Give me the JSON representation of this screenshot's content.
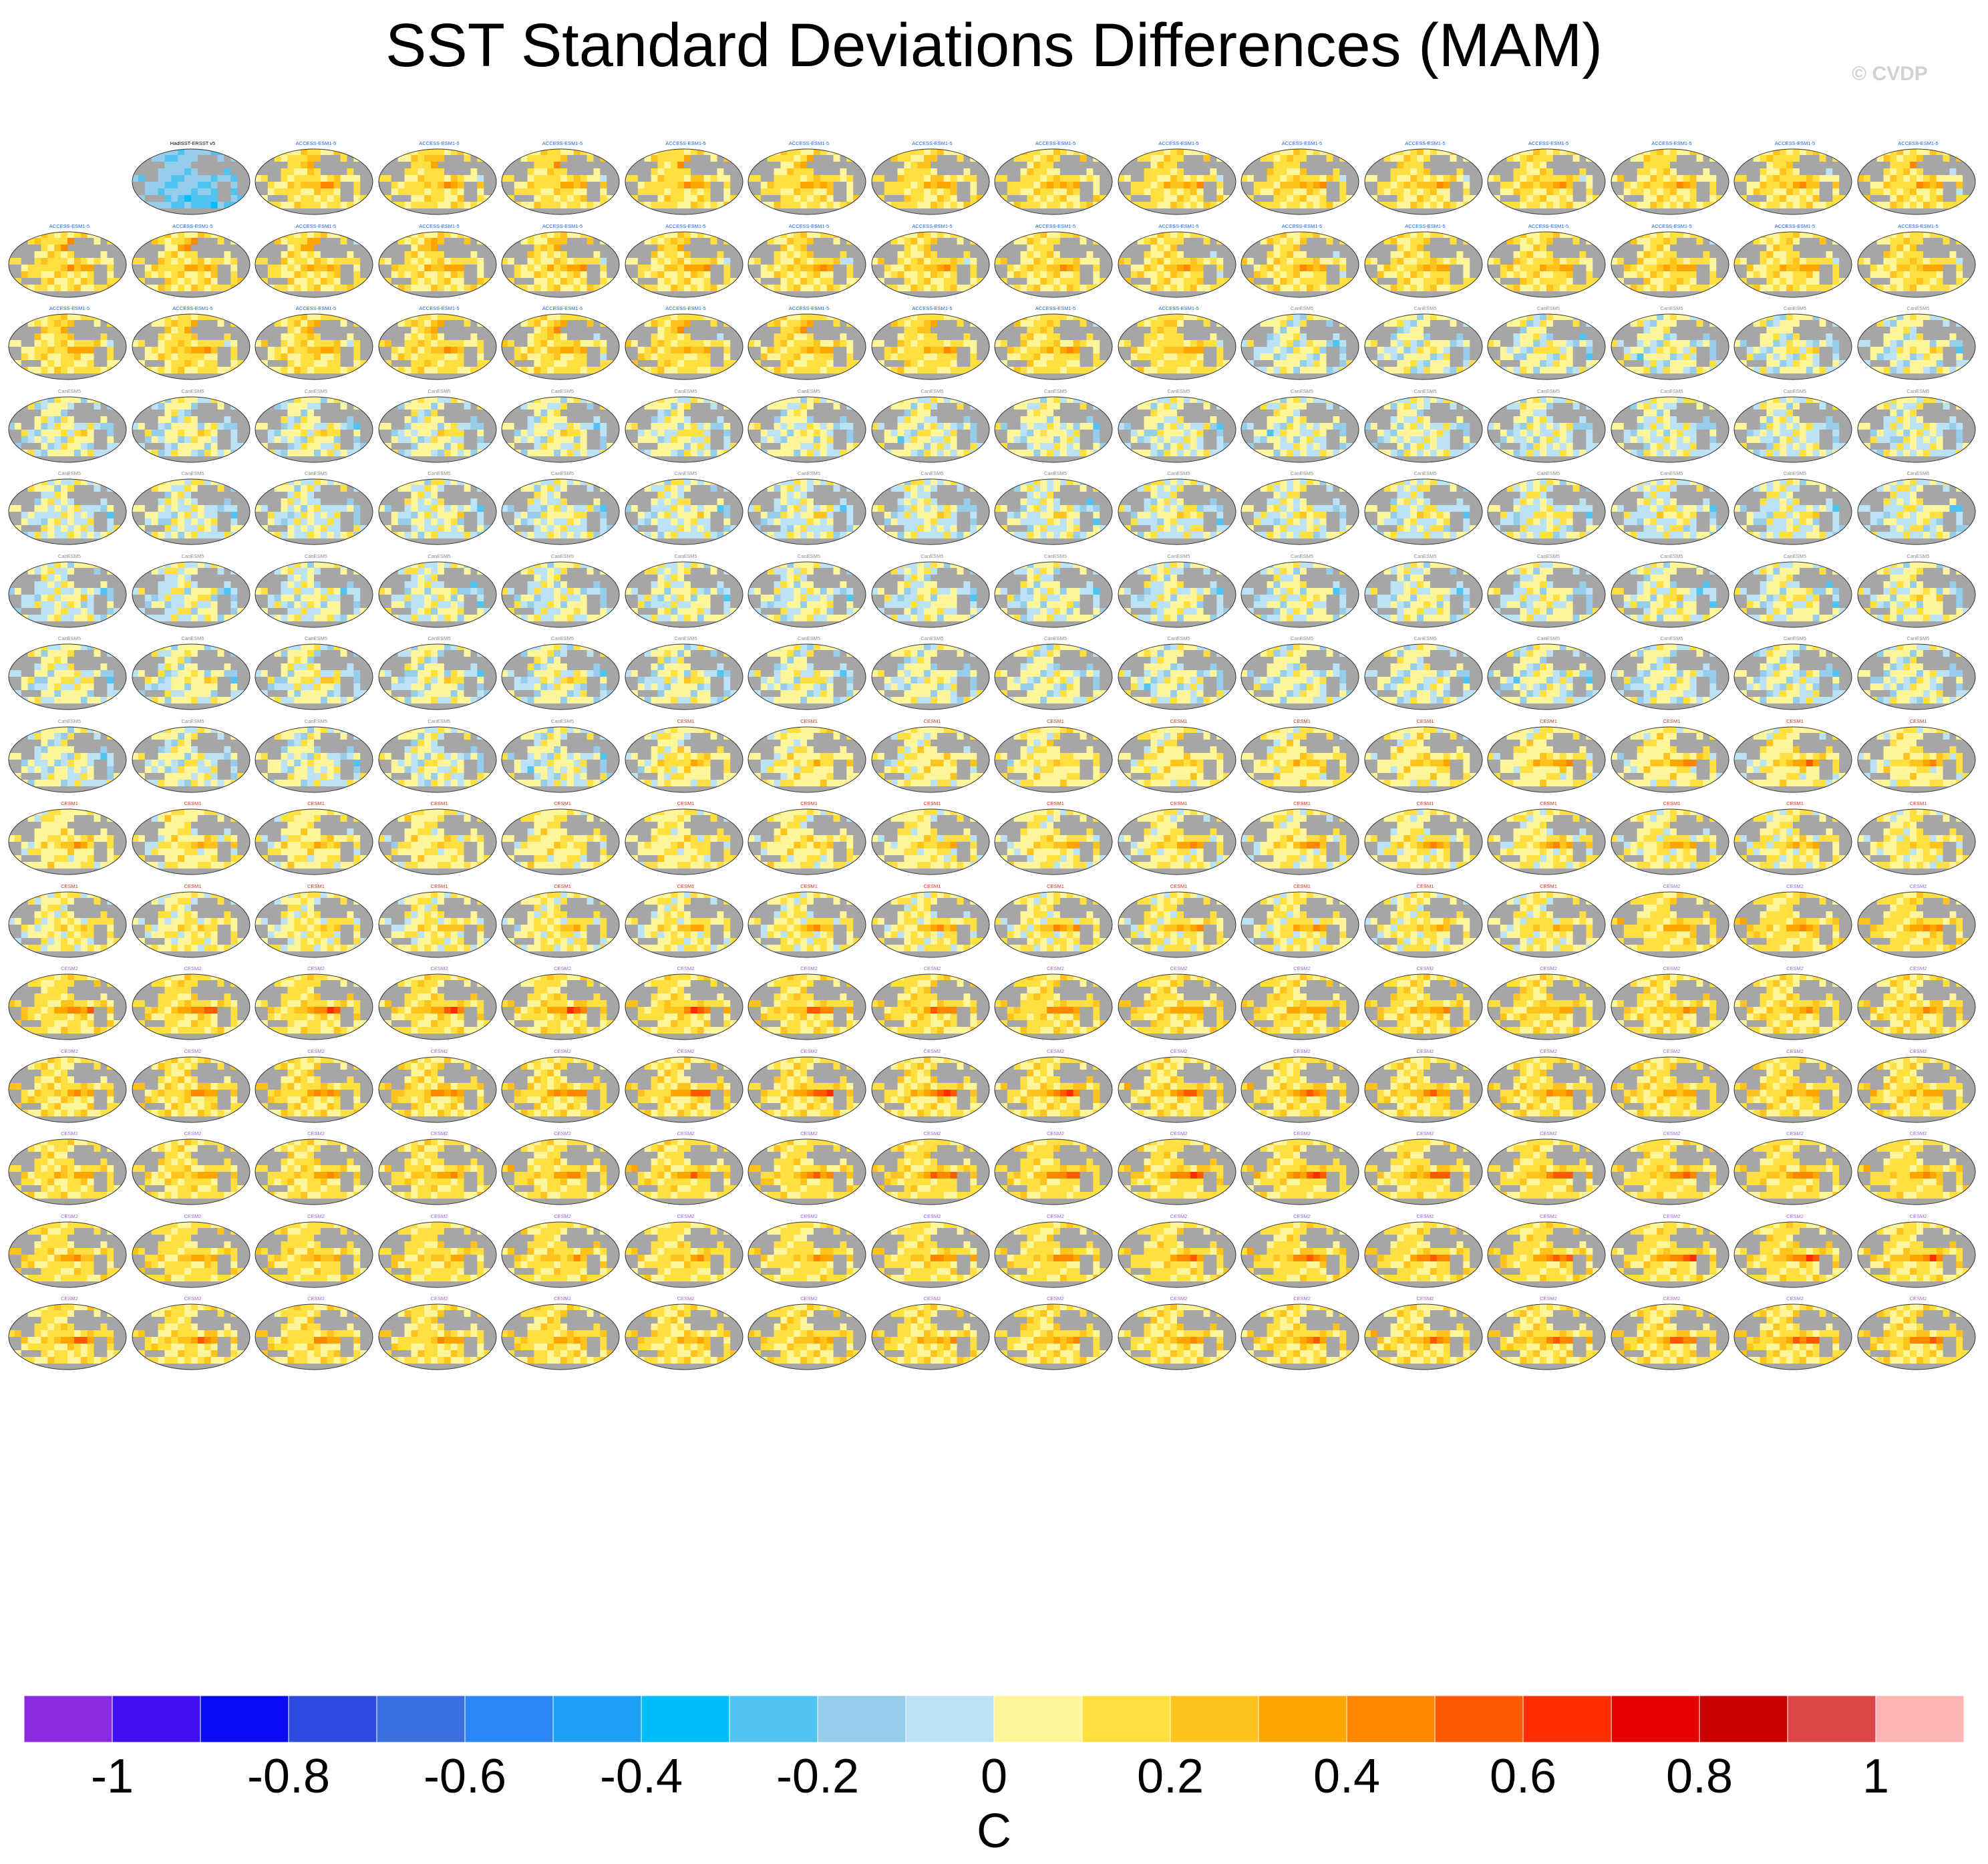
{
  "title": "SST Standard Deviations Differences (MAM)",
  "watermark": "© CVDP",
  "colors": {
    "land": "#a6a6a6",
    "coast": "#555555",
    "obs_title": "#000000",
    "access_title": "#1a66d9",
    "canesm_title": "#8c8c8c",
    "cesm1_title": "#c43c1e",
    "cesm2_title": "#9966d9"
  },
  "chart_data": {
    "type": "heatmap",
    "subtype": "map-panel-grid",
    "variable": "SST standard deviation difference",
    "season": "MAM",
    "projection": "Robinson-like global ocean maps",
    "layout": {
      "rows": 15,
      "columns": 16,
      "first_cell_empty": true
    },
    "panel_groups": [
      {
        "name": "HadISST-ERSST v5",
        "count": 1,
        "title_color": "obs_title",
        "pattern": "obs"
      },
      {
        "name": "ACCESS-ESM1-5",
        "count": 40,
        "title_color": "access_title",
        "pattern": "access"
      },
      {
        "name": "CanESM5",
        "count": 75,
        "title_color": "canesm_title",
        "pattern": "canesm"
      },
      {
        "name": "CESM1",
        "count": 40,
        "title_color": "cesm1_title",
        "pattern": "cesm1"
      },
      {
        "name": "CESM2",
        "count": 83,
        "title_color": "cesm2_title",
        "pattern": "cesm2"
      }
    ],
    "colorbar": {
      "label": "C",
      "min": -1.1,
      "max": 1.1,
      "step": 0.1,
      "ticks": [
        "-1",
        "-0.8",
        "-0.6",
        "-0.4",
        "-0.2",
        "0",
        "0.2",
        "0.4",
        "0.6",
        "0.8",
        "1"
      ],
      "tick_values": [
        -1,
        -0.8,
        -0.6,
        -0.4,
        -0.2,
        0,
        0.2,
        0.4,
        0.6,
        0.8,
        1
      ],
      "colors": [
        "#8a2be2",
        "#4010f0",
        "#0a0afa",
        "#2d4be0",
        "#3a6fe0",
        "#2c85f5",
        "#1ea0f5",
        "#00bcfa",
        "#50c3f0",
        "#96cdeb",
        "#bce3f5",
        "#fff59a",
        "#ffe040",
        "#ffc31e",
        "#ffa500",
        "#ff8700",
        "#ff5a00",
        "#ff2d00",
        "#e60000",
        "#c80000",
        "#dc4646",
        "#ffb4b4"
      ]
    }
  }
}
